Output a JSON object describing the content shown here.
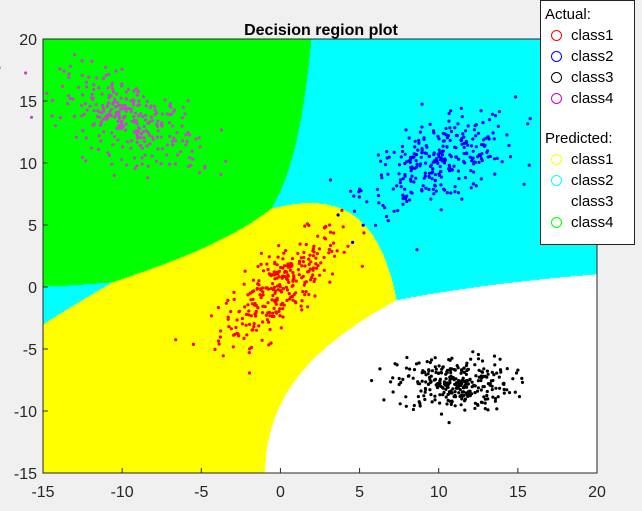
{
  "chart_data": {
    "type": "scatter",
    "title": "Decision region plot",
    "xlabel": "",
    "ylabel": "",
    "xlim": [
      -15,
      20
    ],
    "ylim": [
      -15,
      20
    ],
    "x_ticks": [
      -15,
      -10,
      -5,
      0,
      5,
      10,
      15,
      20
    ],
    "y_ticks": [
      -15,
      -10,
      -5,
      0,
      5,
      10,
      15,
      20
    ],
    "grid": false,
    "legend_position": "top-right",
    "regions": [
      {
        "name": "class1",
        "color": "#ffff00"
      },
      {
        "name": "class2",
        "color": "#00ffff"
      },
      {
        "name": "class3",
        "color": "#ffffff"
      },
      {
        "name": "class4",
        "color": "#00ff00"
      }
    ],
    "series": [
      {
        "name": "class1",
        "color": "#ff0000",
        "center": [
          0,
          0
        ],
        "spread": [
          1.9,
          2.3
        ],
        "correlation": 0.75,
        "count": 300
      },
      {
        "name": "class2",
        "color": "#0000ff",
        "center": [
          10,
          10
        ],
        "spread": [
          2.4,
          1.9
        ],
        "correlation": 0.55,
        "count": 300
      },
      {
        "name": "class3",
        "color": "#000000",
        "center": [
          11,
          -7.8
        ],
        "spread": [
          1.8,
          1.1
        ],
        "correlation": 0.0,
        "count": 300
      },
      {
        "name": "class4",
        "color": "#cc44cc",
        "center": [
          -9.5,
          13.5
        ],
        "spread": [
          2.2,
          1.9
        ],
        "correlation": -0.55,
        "count": 300
      }
    ]
  },
  "legend": {
    "actual_header": "Actual:",
    "actual": [
      {
        "label": "class1",
        "color": "#ff0000"
      },
      {
        "label": "class2",
        "color": "#0000ff"
      },
      {
        "label": "class3",
        "color": "#000000"
      },
      {
        "label": "class4",
        "color": "#cc00cc"
      }
    ],
    "predicted_header": "Predicted:",
    "predicted": [
      {
        "label": "class1",
        "color": "#ffff00"
      },
      {
        "label": "class2",
        "color": "#00ffff"
      },
      {
        "label": "class3",
        "color": "#ffffff"
      },
      {
        "label": "class4",
        "color": "#00ff00"
      }
    ]
  }
}
